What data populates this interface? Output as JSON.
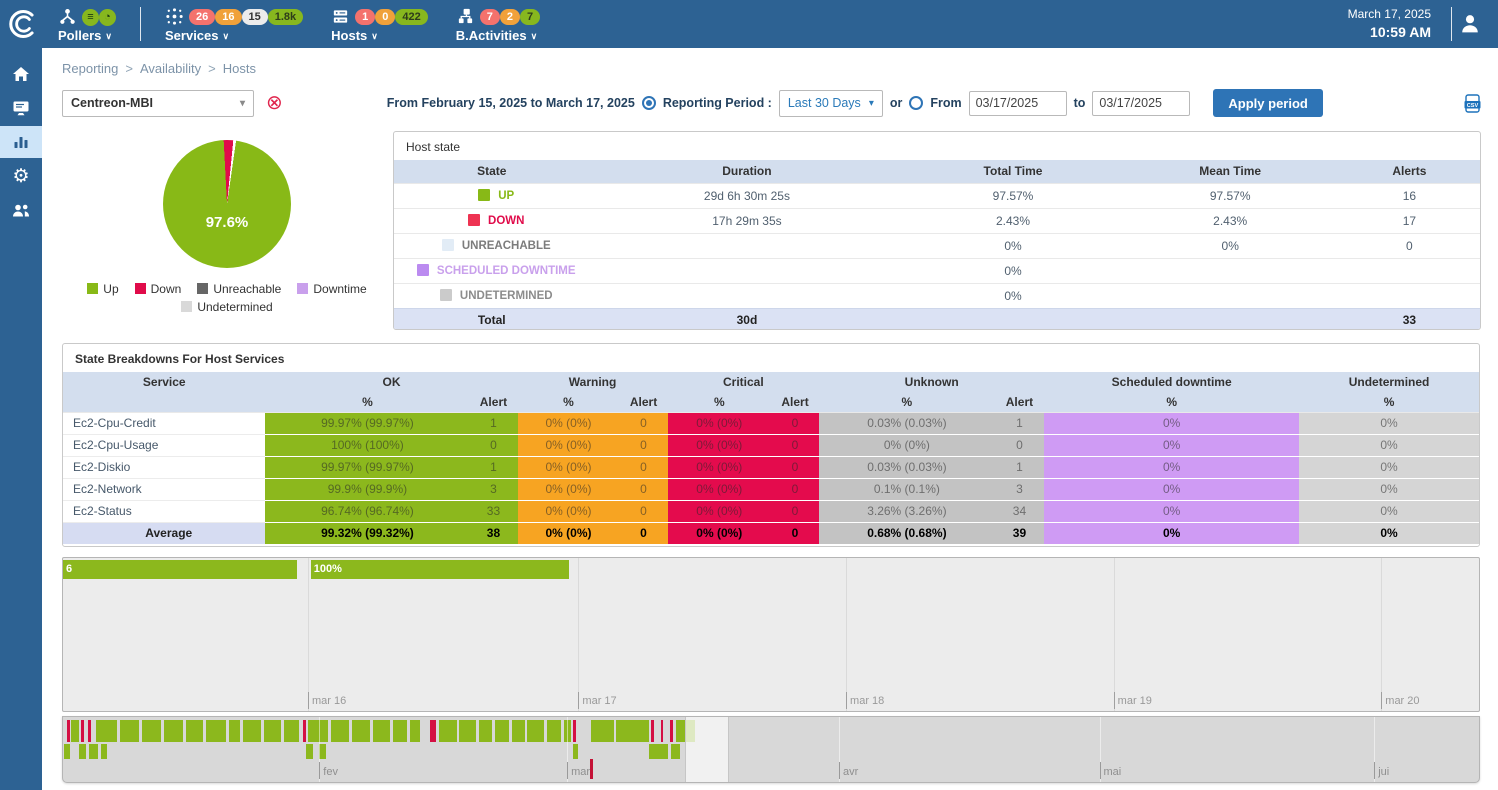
{
  "colors": {
    "topbar_bg": "#2d6293",
    "accent_blue": "#2e74b6",
    "up_green": "#88b917",
    "down_red": "#e00b4a",
    "warning_orange": "#f7a422",
    "unknown_gray": "#c3c3c3",
    "downtime_purple": "#cf9bf4",
    "undetermined_gray": "#d5d5d5",
    "table_header": "#d3deee",
    "total_row": "#dbe2f4"
  },
  "topbar": {
    "date": "March 17, 2025",
    "time": "10:59 AM",
    "menus": [
      {
        "label": "Pollers",
        "badges": [
          {
            "text": "≡",
            "color": "icon"
          },
          {
            "text": "◔",
            "color": "icon"
          }
        ]
      },
      {
        "label": "Services",
        "badges": [
          {
            "text": "26",
            "color": "red"
          },
          {
            "text": "16",
            "color": "orange"
          },
          {
            "text": "15",
            "color": "light"
          },
          {
            "text": "1.8k",
            "color": "green"
          }
        ]
      },
      {
        "label": "Hosts",
        "badges": [
          {
            "text": "1",
            "color": "red"
          },
          {
            "text": "0",
            "color": "orange"
          },
          {
            "text": "422",
            "color": "green"
          }
        ]
      },
      {
        "label": "B.Activities",
        "badges": [
          {
            "text": "7",
            "color": "red"
          },
          {
            "text": "2",
            "color": "orange"
          },
          {
            "text": "7",
            "color": "green"
          }
        ]
      }
    ]
  },
  "breadcrumb": {
    "items": [
      "Reporting",
      "Availability",
      "Hosts"
    ],
    "separator": ">"
  },
  "filterbar": {
    "host_select": "Centreon-MBI",
    "period_summary": "From February 15, 2025 to March 17, 2025",
    "reporting_period_label": "Reporting Period :",
    "period_select": "Last 30 Days",
    "or_label": "or",
    "from_label": "From",
    "from_value": "03/17/2025",
    "to_label": "to",
    "to_value": "03/17/2025",
    "apply_button": "Apply period"
  },
  "host_state": {
    "title": "Host state",
    "columns": [
      "State",
      "Duration",
      "Total Time",
      "Mean Time",
      "Alerts"
    ],
    "rows": [
      {
        "state": "UP",
        "duration": "29d 6h 30m 25s",
        "total_time": "97.57%",
        "mean_time": "97.57%",
        "alerts": "16",
        "square": "#88b917",
        "label_color": "#88b917"
      },
      {
        "state": "DOWN",
        "duration": "17h 29m 35s",
        "total_time": "2.43%",
        "mean_time": "2.43%",
        "alerts": "17",
        "square": "#ee3352",
        "label_color": "#e00b4a"
      },
      {
        "state": "UNREACHABLE",
        "duration": "",
        "total_time": "0%",
        "mean_time": "0%",
        "alerts": "0",
        "square": "#e2ecf6",
        "label_color": "#7c7c7c"
      },
      {
        "state": "SCHEDULED DOWNTIME",
        "duration": "",
        "total_time": "0%",
        "mean_time": "",
        "alerts": "",
        "square": "#bb8bf0",
        "label_color": "#c9a0ec"
      },
      {
        "state": "UNDETERMINED",
        "duration": "",
        "total_time": "0%",
        "mean_time": "",
        "alerts": "",
        "square": "#cbcbcb",
        "label_color": "#8c8c8c"
      }
    ],
    "total_row": {
      "label": "Total",
      "duration": "30d",
      "total_time": "",
      "mean_time": "",
      "alerts": "33"
    }
  },
  "breakdowns": {
    "title": "State Breakdowns For Host Services",
    "groups": [
      {
        "label": "Service",
        "span": 1
      },
      {
        "label": "OK",
        "span": 2
      },
      {
        "label": "Warning",
        "span": 2
      },
      {
        "label": "Critical",
        "span": 2
      },
      {
        "label": "Unknown",
        "span": 2
      },
      {
        "label": "Scheduled downtime",
        "span": 1
      },
      {
        "label": "Undetermined",
        "span": 1
      }
    ],
    "subheaders": [
      "",
      "%",
      "Alert",
      "%",
      "Alert",
      "%",
      "Alert",
      "%",
      "Alert",
      "%",
      "%"
    ],
    "rows": [
      {
        "service": "Ec2-Cpu-Credit",
        "cells": [
          "99.97% (99.97%)",
          "1",
          "0% (0%)",
          "0",
          "0% (0%)",
          "0",
          "0.03% (0.03%)",
          "1",
          "0%",
          "0%"
        ]
      },
      {
        "service": "Ec2-Cpu-Usage",
        "cells": [
          "100% (100%)",
          "0",
          "0% (0%)",
          "0",
          "0% (0%)",
          "0",
          "0% (0%)",
          "0",
          "0%",
          "0%"
        ]
      },
      {
        "service": "Ec2-Diskio",
        "cells": [
          "99.97% (99.97%)",
          "1",
          "0% (0%)",
          "0",
          "0% (0%)",
          "0",
          "0.03% (0.03%)",
          "1",
          "0%",
          "0%"
        ]
      },
      {
        "service": "Ec2-Network",
        "cells": [
          "99.9% (99.9%)",
          "3",
          "0% (0%)",
          "0",
          "0% (0%)",
          "0",
          "0.1% (0.1%)",
          "3",
          "0%",
          "0%"
        ]
      },
      {
        "service": "Ec2-Status",
        "cells": [
          "96.74% (96.74%)",
          "33",
          "0% (0%)",
          "0",
          "0% (0%)",
          "0",
          "3.26% (3.26%)",
          "34",
          "0%",
          "0%"
        ]
      }
    ],
    "average_row": {
      "service": "Average",
      "cells": [
        "99.32% (99.32%)",
        "38",
        "0% (0%)",
        "0",
        "0% (0%)",
        "0",
        "0.68% (0.68%)",
        "39",
        "0%",
        "0%"
      ]
    }
  },
  "chart_data": [
    {
      "type": "pie",
      "title": "Host availability pie",
      "labels": [
        "Up",
        "Down",
        "Unreachable",
        "Downtime",
        "Undetermined"
      ],
      "values": [
        97.6,
        2.4,
        0,
        0,
        0
      ],
      "colors": [
        "#88b917",
        "#e00b4a",
        "#666666",
        "#c9a0ec",
        "#d9d9d9"
      ],
      "center_label": "97.6%",
      "legend_position": "bottom"
    },
    {
      "type": "timeline",
      "title": "Host availability by day",
      "day_labels": [
        "mar 16",
        "mar 17",
        "mar 18",
        "mar 19",
        "mar 20"
      ],
      "separator_pcts": [
        17.3,
        36.4,
        55.3,
        74.2,
        93.1
      ],
      "bars": [
        {
          "label": "6",
          "start_pct": 0,
          "width_pct": 16.5,
          "color": "#8cb81d"
        },
        {
          "label": "100%",
          "start_pct": 17.5,
          "width_pct": 18.2,
          "color": "#8cb81d"
        }
      ]
    },
    {
      "type": "timeline-overview",
      "title": "Availability overview (months)",
      "month_labels": [
        "fev",
        "mar",
        "avr",
        "mai",
        "jui"
      ],
      "separator_pcts": [
        18.1,
        35.6,
        54.8,
        73.2,
        92.6
      ],
      "selection": {
        "start_pct": 43.9,
        "width_pct": 3.1
      },
      "today_tick_pct": 37.2,
      "row1": [
        [
          0.28,
          0.2,
          "r"
        ],
        [
          0.55,
          0.55,
          "g"
        ],
        [
          1.3,
          0.2,
          "r"
        ],
        [
          1.75,
          0.2,
          "r"
        ],
        [
          2.3,
          1.5,
          "g"
        ],
        [
          4.0,
          1.4,
          "g"
        ],
        [
          5.6,
          1.3,
          "g"
        ],
        [
          7.1,
          1.4,
          "g"
        ],
        [
          8.7,
          1.2,
          "g"
        ],
        [
          10.1,
          1.4,
          "g"
        ],
        [
          11.7,
          0.8,
          "g"
        ],
        [
          12.7,
          1.3,
          "g"
        ],
        [
          14.2,
          1.2,
          "g"
        ],
        [
          15.6,
          1.1,
          "g"
        ],
        [
          16.95,
          0.2,
          "r"
        ],
        [
          17.3,
          1.4,
          "g"
        ],
        [
          18.9,
          1.3,
          "g"
        ],
        [
          20.4,
          1.3,
          "g"
        ],
        [
          21.9,
          1.2,
          "g"
        ],
        [
          23.3,
          1.0,
          "g"
        ],
        [
          24.5,
          0.7,
          "g"
        ],
        [
          25.95,
          0.4,
          "r"
        ],
        [
          26.55,
          1.3,
          "g"
        ],
        [
          28.0,
          1.2,
          "g"
        ],
        [
          29.4,
          0.9,
          "g"
        ],
        [
          30.5,
          1.0,
          "g"
        ],
        [
          31.7,
          0.9,
          "g"
        ],
        [
          32.8,
          1.2,
          "g"
        ],
        [
          34.2,
          1.0,
          "g"
        ],
        [
          35.4,
          0.45,
          "g"
        ],
        [
          36.0,
          0.25,
          "r"
        ],
        [
          37.3,
          1.6,
          "g"
        ],
        [
          39.05,
          2.3,
          "g"
        ],
        [
          41.55,
          0.2,
          "r"
        ],
        [
          42.2,
          0.2,
          "r"
        ],
        [
          42.85,
          0.2,
          "r"
        ],
        [
          43.3,
          1.3,
          "g"
        ]
      ],
      "row2": [
        [
          0.05,
          0.45,
          "g"
        ],
        [
          1.1,
          0.55,
          "g"
        ],
        [
          1.85,
          0.65,
          "g"
        ],
        [
          2.7,
          0.4,
          "g"
        ],
        [
          17.15,
          0.5,
          "g"
        ],
        [
          18.05,
          0.55,
          "g"
        ],
        [
          36.0,
          0.4,
          "g"
        ],
        [
          41.35,
          1.35,
          "g"
        ],
        [
          42.95,
          0.6,
          "g"
        ]
      ]
    }
  ]
}
